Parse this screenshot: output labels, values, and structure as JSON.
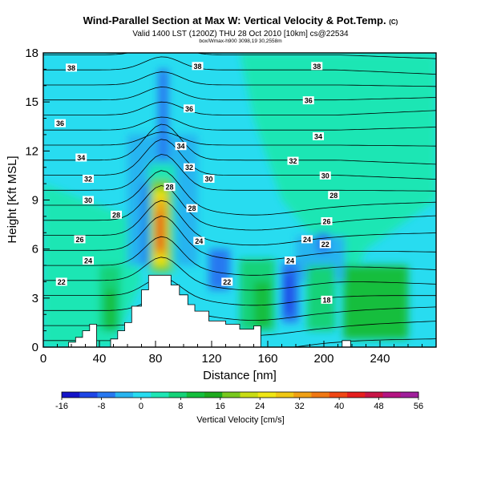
{
  "header": {
    "title": "Wind-Parallel Section at Max W: Vertical Velocity & Pot.Temp.",
    "title_mark": "(C)",
    "subtitle": "Valid 1400 LST (1200Z) THU 28 Oct 2010 [10km] cs@22534",
    "source": "box/Wmax-h900 3098,19 30,2558m"
  },
  "chart_data": {
    "type": "heatmap",
    "subtype": "cross-section with contours",
    "xlabel": "Distance [nm]",
    "ylabel": "Height [Kft MSL]",
    "xlim": [
      0,
      280
    ],
    "ylim": [
      0,
      18
    ],
    "x_ticks": [
      0,
      40,
      80,
      120,
      160,
      200,
      240
    ],
    "y_ticks": [
      0,
      3,
      6,
      9,
      12,
      15,
      18
    ],
    "grid": false,
    "field": "Vertical Velocity [cm/s]",
    "colorbar": {
      "label": "Vertical Velocity [cm/s]",
      "ticks": [
        -16,
        -8,
        0,
        8,
        16,
        24,
        32,
        40,
        48,
        56
      ],
      "colors": [
        "#1414c8",
        "#1e46e6",
        "#2878f0",
        "#28b4f0",
        "#28dcf0",
        "#1ee6b4",
        "#14d278",
        "#14be3c",
        "#1eaa1e",
        "#78c81e",
        "#c8dc14",
        "#f0e614",
        "#f0c814",
        "#f0a014",
        "#f07814",
        "#f04614",
        "#e61e1e",
        "#c81446",
        "#b41482",
        "#a01e9b"
      ]
    },
    "contour_labels": [
      {
        "text": "38",
        "x": 20,
        "y": 17.1
      },
      {
        "text": "38",
        "x": 110,
        "y": 17.2
      },
      {
        "text": "38",
        "x": 195,
        "y": 17.2
      },
      {
        "text": "36",
        "x": 12,
        "y": 13.7
      },
      {
        "text": "36",
        "x": 104,
        "y": 14.6
      },
      {
        "text": "36",
        "x": 189,
        "y": 15.1
      },
      {
        "text": "34",
        "x": 27,
        "y": 11.6
      },
      {
        "text": "34",
        "x": 98,
        "y": 12.3
      },
      {
        "text": "34",
        "x": 196,
        "y": 12.9
      },
      {
        "text": "32",
        "x": 32,
        "y": 10.3
      },
      {
        "text": "32",
        "x": 104,
        "y": 11.0
      },
      {
        "text": "32",
        "x": 178,
        "y": 11.4
      },
      {
        "text": "30",
        "x": 32,
        "y": 9.0
      },
      {
        "text": "30",
        "x": 118,
        "y": 10.3
      },
      {
        "text": "30",
        "x": 201,
        "y": 10.5
      },
      {
        "text": "28",
        "x": 52,
        "y": 8.1
      },
      {
        "text": "28",
        "x": 90,
        "y": 9.8
      },
      {
        "text": "28",
        "x": 106,
        "y": 8.5
      },
      {
        "text": "28",
        "x": 207,
        "y": 9.3
      },
      {
        "text": "26",
        "x": 26,
        "y": 6.6
      },
      {
        "text": "26",
        "x": 202,
        "y": 7.7
      },
      {
        "text": "24",
        "x": 32,
        "y": 5.3
      },
      {
        "text": "24",
        "x": 111,
        "y": 6.5
      },
      {
        "text": "24",
        "x": 176,
        "y": 5.3
      },
      {
        "text": "24",
        "x": 188,
        "y": 6.6
      },
      {
        "text": "22",
        "x": 13,
        "y": 4.0
      },
      {
        "text": "22",
        "x": 131,
        "y": 4.0
      },
      {
        "text": "22",
        "x": 201,
        "y": 6.3
      },
      {
        "text": "18",
        "x": 202,
        "y": 2.9
      }
    ],
    "terrain": [
      [
        0,
        0
      ],
      [
        18,
        0
      ],
      [
        18,
        0.3
      ],
      [
        23,
        0.3
      ],
      [
        23,
        0.6
      ],
      [
        28,
        0.6
      ],
      [
        28,
        1.0
      ],
      [
        33,
        1.0
      ],
      [
        33,
        1.4
      ],
      [
        38,
        1.4
      ],
      [
        38,
        0
      ],
      [
        48,
        0
      ],
      [
        48,
        0.5
      ],
      [
        53,
        0.5
      ],
      [
        53,
        1.0
      ],
      [
        58,
        1.0
      ],
      [
        58,
        1.5
      ],
      [
        63,
        1.5
      ],
      [
        63,
        2.5
      ],
      [
        70,
        2.5
      ],
      [
        70,
        3.5
      ],
      [
        75,
        3.5
      ],
      [
        75,
        4.4
      ],
      [
        91,
        4.4
      ],
      [
        91,
        3.8
      ],
      [
        97,
        3.8
      ],
      [
        97,
        3.2
      ],
      [
        103,
        3.2
      ],
      [
        103,
        2.6
      ],
      [
        108,
        2.6
      ],
      [
        108,
        2.2
      ],
      [
        118,
        2.2
      ],
      [
        118,
        1.6
      ],
      [
        130,
        1.6
      ],
      [
        130,
        1.4
      ],
      [
        140,
        1.4
      ],
      [
        140,
        1.1
      ],
      [
        150,
        1.1
      ],
      [
        150,
        1.3
      ],
      [
        155,
        1.3
      ],
      [
        155,
        0
      ],
      [
        213,
        0
      ],
      [
        213,
        0.4
      ],
      [
        219,
        0.4
      ],
      [
        219,
        0
      ],
      [
        280,
        0
      ]
    ]
  }
}
